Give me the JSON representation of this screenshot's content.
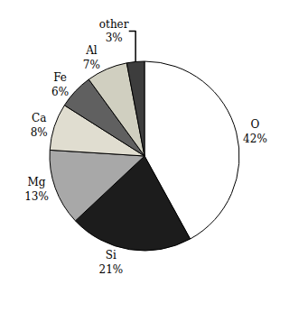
{
  "chart_data": {
    "type": "pie",
    "categories": [
      "O",
      "Si",
      "Mg",
      "Ca",
      "Fe",
      "Al",
      "other"
    ],
    "values": [
      42,
      21,
      13,
      8,
      6,
      7,
      3
    ],
    "value_labels": [
      "42%",
      "21%",
      "13%",
      "8%",
      "6%",
      "7%",
      "3%"
    ],
    "colors": [
      "#ffffff",
      "#1c1c1c",
      "#a8a8a8",
      "#e0ddd0",
      "#606060",
      "#d0cfc0",
      "#3d3d3d"
    ],
    "data_labels": true
  }
}
